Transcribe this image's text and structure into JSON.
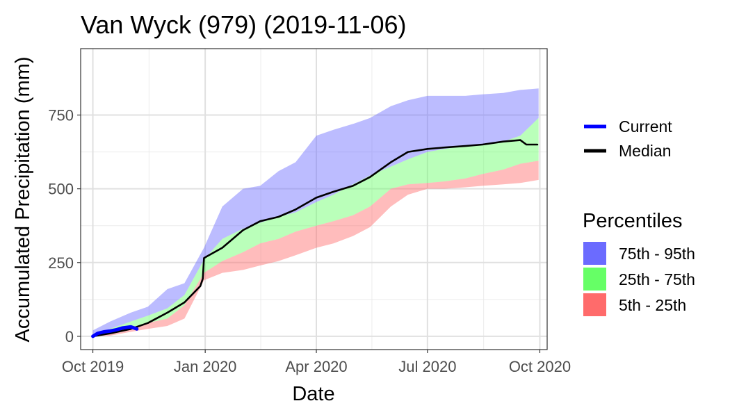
{
  "chart_data": {
    "type": "area",
    "title": "Van Wyck (979) (2019-11-06)",
    "xlabel": "Date",
    "ylabel": "Accumulated Precipitation (mm)",
    "xlim": [
      "2019-09-21",
      "2020-10-07"
    ],
    "ylim": [
      -45,
      975
    ],
    "x_ticks": [
      "2019-10-01",
      "2020-01-01",
      "2020-04-01",
      "2020-07-01",
      "2020-10-01"
    ],
    "x_tick_labels": [
      "Oct 2019",
      "Jan 2020",
      "Apr 2020",
      "Jul 2020",
      "Oct 2020"
    ],
    "y_ticks": [
      0,
      250,
      500,
      750
    ],
    "y_tick_labels": [
      "0",
      "250",
      "500",
      "750"
    ],
    "grid": true,
    "legend_position": "right",
    "colors": {
      "current": "#0000ff",
      "median": "#000000",
      "p75_95": "#6b6bff",
      "p25_75": "#66ff66",
      "p5_25": "#ff6b6b"
    },
    "bands": [
      {
        "name": "75th - 95th",
        "x": [
          "2019-10-01",
          "2019-10-15",
          "2019-11-01",
          "2019-11-15",
          "2019-12-01",
          "2019-12-15",
          "2019-12-31",
          "2020-01-15",
          "2020-02-01",
          "2020-02-15",
          "2020-03-01",
          "2020-03-15",
          "2020-04-01",
          "2020-04-15",
          "2020-05-01",
          "2020-05-15",
          "2020-06-01",
          "2020-06-15",
          "2020-07-01",
          "2020-07-15",
          "2020-08-01",
          "2020-08-15",
          "2020-09-01",
          "2020-09-15",
          "2020-09-30"
        ],
        "lower": [
          5,
          25,
          50,
          70,
          95,
          140,
          260,
          330,
          365,
          385,
          405,
          420,
          455,
          480,
          515,
          545,
          575,
          600,
          625,
          635,
          645,
          650,
          660,
          680,
          740
        ],
        "upper": [
          20,
          50,
          80,
          100,
          160,
          180,
          300,
          440,
          500,
          510,
          560,
          590,
          680,
          700,
          720,
          740,
          780,
          800,
          815,
          815,
          815,
          820,
          825,
          835,
          840
        ]
      },
      {
        "name": "25th - 75th",
        "x": [
          "2019-10-01",
          "2019-10-15",
          "2019-11-01",
          "2019-11-15",
          "2019-12-01",
          "2019-12-15",
          "2019-12-31",
          "2020-01-15",
          "2020-02-01",
          "2020-02-15",
          "2020-03-01",
          "2020-03-15",
          "2020-04-01",
          "2020-04-15",
          "2020-05-01",
          "2020-05-15",
          "2020-06-01",
          "2020-06-15",
          "2020-07-01",
          "2020-07-15",
          "2020-08-01",
          "2020-08-15",
          "2020-09-01",
          "2020-09-15",
          "2020-09-30"
        ],
        "lower": [
          0,
          8,
          30,
          45,
          60,
          105,
          215,
          255,
          285,
          315,
          330,
          355,
          375,
          390,
          410,
          440,
          500,
          515,
          520,
          525,
          535,
          550,
          565,
          585,
          595
        ],
        "upper": [
          5,
          25,
          50,
          70,
          95,
          140,
          260,
          330,
          365,
          385,
          405,
          420,
          455,
          480,
          515,
          545,
          575,
          600,
          625,
          635,
          645,
          650,
          660,
          680,
          740
        ]
      },
      {
        "name": "5th - 25th",
        "x": [
          "2019-10-01",
          "2019-10-15",
          "2019-11-01",
          "2019-11-15",
          "2019-12-01",
          "2019-12-15",
          "2019-12-31",
          "2020-01-15",
          "2020-02-01",
          "2020-02-15",
          "2020-03-01",
          "2020-03-15",
          "2020-04-01",
          "2020-04-15",
          "2020-05-01",
          "2020-05-15",
          "2020-06-01",
          "2020-06-15",
          "2020-07-01",
          "2020-07-15",
          "2020-08-01",
          "2020-08-15",
          "2020-09-01",
          "2020-09-15",
          "2020-09-30"
        ],
        "lower": [
          0,
          2,
          15,
          25,
          35,
          60,
          190,
          215,
          225,
          240,
          255,
          275,
          300,
          315,
          340,
          370,
          440,
          480,
          500,
          500,
          505,
          510,
          515,
          520,
          530
        ],
        "upper": [
          0,
          8,
          30,
          45,
          60,
          105,
          215,
          255,
          285,
          315,
          330,
          355,
          375,
          390,
          410,
          440,
          500,
          515,
          520,
          525,
          535,
          550,
          565,
          585,
          595
        ]
      }
    ],
    "series": [
      {
        "name": "Median",
        "x": [
          "2019-10-01",
          "2019-10-15",
          "2019-11-01",
          "2019-11-15",
          "2019-12-01",
          "2019-12-15",
          "2019-12-28",
          "2019-12-30",
          "2019-12-31",
          "2020-01-02",
          "2020-01-15",
          "2020-02-01",
          "2020-02-15",
          "2020-03-01",
          "2020-03-15",
          "2020-04-01",
          "2020-04-15",
          "2020-05-01",
          "2020-05-15",
          "2020-06-01",
          "2020-06-15",
          "2020-07-01",
          "2020-07-15",
          "2020-08-01",
          "2020-08-15",
          "2020-09-01",
          "2020-09-15",
          "2020-09-20",
          "2020-09-29"
        ],
        "y": [
          0,
          10,
          25,
          45,
          80,
          115,
          170,
          195,
          265,
          270,
          300,
          360,
          390,
          405,
          430,
          470,
          490,
          510,
          540,
          590,
          625,
          635,
          640,
          645,
          650,
          660,
          665,
          650,
          650
        ]
      },
      {
        "name": "Current",
        "x": [
          "2019-10-01",
          "2019-10-05",
          "2019-10-10",
          "2019-10-15",
          "2019-10-20",
          "2019-10-25",
          "2019-11-01",
          "2019-11-06"
        ],
        "y": [
          0,
          10,
          15,
          18,
          22,
          28,
          32,
          25
        ]
      }
    ],
    "legend": {
      "lines": [
        "Current",
        "Median"
      ],
      "fill_title": "Percentiles",
      "fills": [
        "75th - 95th",
        "25th - 75th",
        "5th - 25th"
      ]
    }
  }
}
